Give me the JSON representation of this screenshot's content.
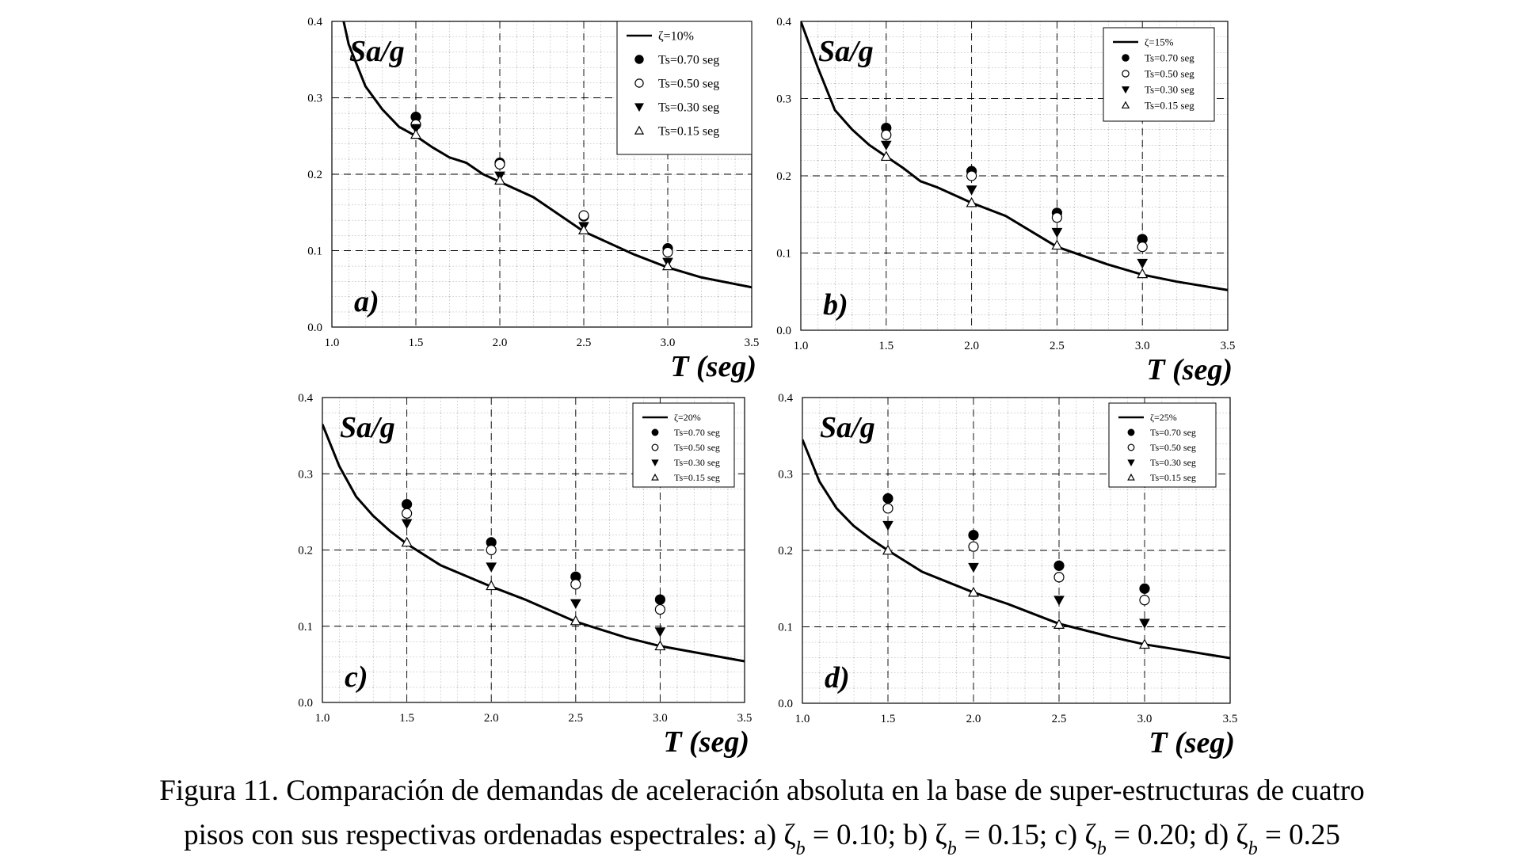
{
  "chart_data": [
    {
      "type": "line",
      "panel_label": "a)",
      "y_label": "Sa/g",
      "x_label": "T (seg)",
      "xlim": [
        1,
        3.5
      ],
      "xticks": [
        {
          "value": 1,
          "label": "1.0"
        },
        1.5,
        {
          "value": 2,
          "label": "2.0"
        },
        2.5,
        {
          "value": 3,
          "label": "3.0"
        },
        3.5
      ],
      "ylim": [
        0,
        0.4
      ],
      "yticks": [
        {
          "value": 0,
          "label": "0.0"
        },
        0.1,
        0.2,
        0.3,
        0.4
      ],
      "grid": true,
      "legend": "upper right",
      "series": [
        {
          "name": "ζ=10%",
          "color": "#000000",
          "marker": "none",
          "x": [
            1.07,
            1.1,
            1.2,
            1.3,
            1.4,
            1.5,
            1.6,
            1.7,
            1.8,
            1.9,
            2.0,
            2.2,
            2.5,
            2.8,
            3.0,
            3.2,
            3.5
          ],
          "values": [
            0.4,
            0.37,
            0.315,
            0.285,
            0.262,
            0.25,
            0.235,
            0.222,
            0.215,
            0.2,
            0.19,
            0.17,
            0.125,
            0.095,
            0.078,
            0.065,
            0.052
          ]
        },
        {
          "name": "Ts=0.70 seg",
          "color": "#000000",
          "marker": "circle",
          "x": [
            1.5,
            2.0,
            2.5,
            3.0
          ],
          "values": [
            0.275,
            0.215,
            0.145,
            0.103
          ]
        },
        {
          "name": "Ts=0.50 seg",
          "color": "#000000",
          "marker": "circle-open",
          "x": [
            1.5,
            2.0,
            2.5,
            3.0
          ],
          "values": [
            0.265,
            0.213,
            0.146,
            0.098
          ]
        },
        {
          "name": "Ts=0.30 seg",
          "color": "#000000",
          "marker": "triangle-down",
          "x": [
            1.5,
            2.0,
            2.5,
            3.0
          ],
          "values": [
            0.26,
            0.198,
            0.132,
            0.085
          ]
        },
        {
          "name": "Ts=0.15 seg",
          "color": "#000000",
          "marker": "triangle-up-open",
          "x": [
            1.5,
            2.0,
            2.5,
            3.0
          ],
          "values": [
            0.252,
            0.192,
            0.127,
            0.08
          ]
        }
      ]
    },
    {
      "type": "line",
      "panel_label": "b)",
      "y_label": "Sa/g",
      "x_label": "T (seg)",
      "xlim": [
        1,
        3.5
      ],
      "xticks": [
        {
          "value": 1,
          "label": "1.0"
        },
        1.5,
        {
          "value": 2,
          "label": "2.0"
        },
        2.5,
        {
          "value": 3,
          "label": "3.0"
        },
        3.5
      ],
      "ylim": [
        0,
        0.4
      ],
      "yticks": [
        {
          "value": 0,
          "label": "0.0"
        },
        0.1,
        0.2,
        0.3,
        0.4
      ],
      "grid": true,
      "legend": "upper right",
      "series": [
        {
          "name": "ζ=15%",
          "color": "#000000",
          "marker": "none",
          "x": [
            1.0,
            1.1,
            1.2,
            1.3,
            1.4,
            1.5,
            1.6,
            1.7,
            1.8,
            1.9,
            2.0,
            2.2,
            2.5,
            2.8,
            3.0,
            3.2,
            3.5
          ],
          "values": [
            0.4,
            0.34,
            0.285,
            0.26,
            0.24,
            0.225,
            0.21,
            0.193,
            0.185,
            0.175,
            0.165,
            0.148,
            0.108,
            0.085,
            0.072,
            0.063,
            0.052
          ]
        },
        {
          "name": "Ts=0.70 seg",
          "color": "#000000",
          "marker": "circle",
          "x": [
            1.5,
            2.0,
            2.5,
            3.0
          ],
          "values": [
            0.262,
            0.206,
            0.152,
            0.118
          ]
        },
        {
          "name": "Ts=0.50 seg",
          "color": "#000000",
          "marker": "circle-open",
          "x": [
            1.5,
            2.0,
            2.5,
            3.0
          ],
          "values": [
            0.253,
            0.2,
            0.146,
            0.108
          ]
        },
        {
          "name": "Ts=0.30 seg",
          "color": "#000000",
          "marker": "triangle-down",
          "x": [
            1.5,
            2.0,
            2.5,
            3.0
          ],
          "values": [
            0.24,
            0.182,
            0.127,
            0.087
          ]
        },
        {
          "name": "Ts=0.15 seg",
          "color": "#000000",
          "marker": "triangle-up-open",
          "x": [
            1.5,
            2.0,
            2.5,
            3.0
          ],
          "values": [
            0.225,
            0.165,
            0.11,
            0.073
          ]
        }
      ]
    },
    {
      "type": "line",
      "panel_label": "c)",
      "y_label": "Sa/g",
      "x_label": "T (seg)",
      "xlim": [
        1,
        3.5
      ],
      "xticks": [
        {
          "value": 1,
          "label": "1.0"
        },
        1.5,
        {
          "value": 2,
          "label": "2.0"
        },
        2.5,
        {
          "value": 3,
          "label": "3.0"
        },
        3.5
      ],
      "ylim": [
        0,
        0.4
      ],
      "yticks": [
        {
          "value": 0,
          "label": "0.0"
        },
        0.1,
        0.2,
        0.3,
        0.4
      ],
      "grid": true,
      "legend": "upper right",
      "series": [
        {
          "name": "ζ=20%",
          "color": "#000000",
          "marker": "none",
          "x": [
            1.0,
            1.1,
            1.2,
            1.3,
            1.4,
            1.5,
            1.7,
            2.0,
            2.2,
            2.5,
            2.8,
            3.0,
            3.2,
            3.5
          ],
          "values": [
            0.365,
            0.31,
            0.27,
            0.245,
            0.225,
            0.208,
            0.18,
            0.152,
            0.135,
            0.106,
            0.085,
            0.074,
            0.066,
            0.054
          ]
        },
        {
          "name": "Ts=0.70 seg",
          "color": "#000000",
          "marker": "circle",
          "x": [
            1.5,
            2.0,
            2.5,
            3.0
          ],
          "values": [
            0.26,
            0.21,
            0.165,
            0.135
          ]
        },
        {
          "name": "Ts=0.50 seg",
          "color": "#000000",
          "marker": "circle-open",
          "x": [
            1.5,
            2.0,
            2.5,
            3.0
          ],
          "values": [
            0.248,
            0.2,
            0.155,
            0.122
          ]
        },
        {
          "name": "Ts=0.30 seg",
          "color": "#000000",
          "marker": "triangle-down",
          "x": [
            1.5,
            2.0,
            2.5,
            3.0
          ],
          "values": [
            0.235,
            0.178,
            0.13,
            0.093
          ]
        },
        {
          "name": "Ts=0.15 seg",
          "color": "#000000",
          "marker": "triangle-up-open",
          "x": [
            1.5,
            2.0,
            2.5,
            3.0
          ],
          "values": [
            0.21,
            0.153,
            0.107,
            0.074
          ]
        }
      ]
    },
    {
      "type": "line",
      "panel_label": "d)",
      "y_label": "Sa/g",
      "x_label": "T (seg)",
      "xlim": [
        1,
        3.5
      ],
      "xticks": [
        {
          "value": 1,
          "label": "1.0"
        },
        1.5,
        {
          "value": 2,
          "label": "2.0"
        },
        2.5,
        {
          "value": 3,
          "label": "3.0"
        },
        3.5
      ],
      "ylim": [
        0,
        0.4
      ],
      "yticks": [
        {
          "value": 0,
          "label": "0.0"
        },
        0.1,
        0.2,
        0.3,
        0.4
      ],
      "grid": true,
      "legend": "upper right",
      "series": [
        {
          "name": "ζ=25%",
          "color": "#000000",
          "marker": "none",
          "x": [
            1.0,
            1.1,
            1.2,
            1.3,
            1.4,
            1.5,
            1.7,
            2.0,
            2.2,
            2.5,
            2.8,
            3.0,
            3.2,
            3.5
          ],
          "values": [
            0.345,
            0.29,
            0.255,
            0.232,
            0.215,
            0.2,
            0.172,
            0.145,
            0.13,
            0.104,
            0.087,
            0.077,
            0.07,
            0.059
          ]
        },
        {
          "name": "Ts=0.70 seg",
          "color": "#000000",
          "marker": "circle",
          "x": [
            1.5,
            2.0,
            2.5,
            3.0
          ],
          "values": [
            0.268,
            0.22,
            0.18,
            0.15
          ]
        },
        {
          "name": "Ts=0.50 seg",
          "color": "#000000",
          "marker": "circle-open",
          "x": [
            1.5,
            2.0,
            2.5,
            3.0
          ],
          "values": [
            0.255,
            0.205,
            0.165,
            0.135
          ]
        },
        {
          "name": "Ts=0.30 seg",
          "color": "#000000",
          "marker": "triangle-down",
          "x": [
            1.5,
            2.0,
            2.5,
            3.0
          ],
          "values": [
            0.233,
            0.178,
            0.135,
            0.105
          ]
        },
        {
          "name": "Ts=0.15 seg",
          "color": "#000000",
          "marker": "triangle-up-open",
          "x": [
            1.5,
            2.0,
            2.5,
            3.0
          ],
          "values": [
            0.2,
            0.145,
            0.103,
            0.077
          ]
        }
      ]
    }
  ],
  "caption": {
    "lines": [
      [
        {
          "text": "Figura 11. Comparación de demandas de aceleración absoluta en la base de super-estructuras de cuatro",
          "sub": false
        }
      ],
      [
        {
          "text": "pisos con sus respectivas ordenadas espectrales: a) ζ",
          "sub": false
        },
        {
          "text": "b",
          "sub": true
        },
        {
          "text": " = 0.10; b) ζ",
          "sub": false
        },
        {
          "text": "b",
          "sub": true
        },
        {
          "text": " = 0.15; c) ζ",
          "sub": false
        },
        {
          "text": "b",
          "sub": true
        },
        {
          "text": " = 0.20; d) ζ",
          "sub": false
        },
        {
          "text": "b",
          "sub": true
        },
        {
          "text": " = 0.25",
          "sub": false
        }
      ]
    ]
  }
}
